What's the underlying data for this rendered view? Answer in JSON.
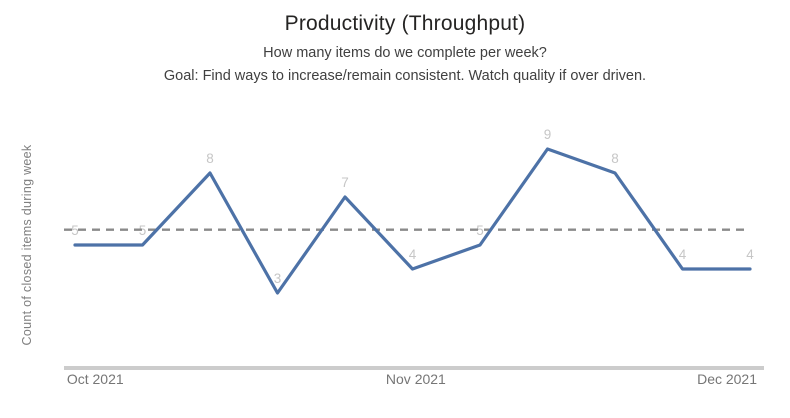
{
  "header": {
    "title": "Productivity (Throughput)",
    "subtitle": "How many items do we complete per week?",
    "goal": "Goal: Find ways to increase/remain consistent. Watch quality if over driven."
  },
  "chart_data": {
    "type": "line",
    "title": "Productivity (Throughput)",
    "subtitle": "How many items do we complete per week?",
    "annotation": "Goal: Find ways to increase/remain consistent. Watch quality if over driven.",
    "values": [
      5,
      5,
      8,
      3,
      7,
      4,
      5,
      9,
      8,
      4,
      4
    ],
    "data_labels_shown": true,
    "x_tick_labels": [
      "Oct 2021",
      "Nov 2021",
      "Dec 2021"
    ],
    "x_tick_positions": [
      0.03,
      0.505,
      0.966
    ],
    "xlabel": "",
    "ylabel": "Count of closed items during week",
    "ylim": [
      0,
      10.6
    ],
    "grid": false,
    "legend": "none",
    "reference_line": {
      "style": "dashed",
      "meaning": "average of series",
      "value": 5.64
    },
    "colors": {
      "line": "#4d72a7",
      "data_label": "#c6c6c6",
      "reference_line": "#8a8a8a",
      "axis_line": "#cccccc",
      "tick_label": "#767676",
      "title": "#252423",
      "subtitle": "#404040",
      "ylabel": "#7f7f7f",
      "background": "#ffffff"
    }
  }
}
